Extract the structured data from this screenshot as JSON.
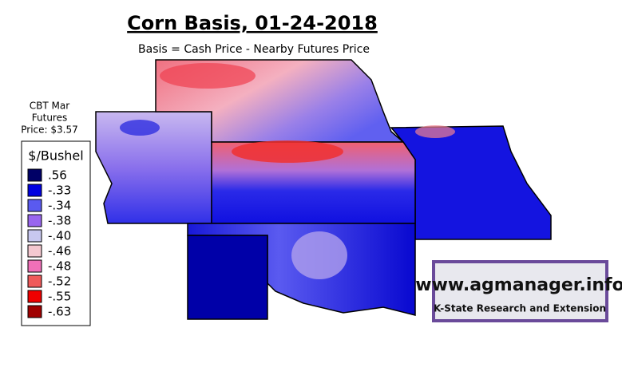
{
  "header": {
    "title": "Corn Basis, 01-24-2018",
    "subtitle": "Basis = Cash Price - Nearby Futures Price"
  },
  "futures": {
    "lines": [
      "CBT Mar",
      "Futures",
      "Price: $3.57"
    ]
  },
  "legend": {
    "title": "$/Bushel",
    "items": [
      {
        "label": ".56",
        "color": "#000066"
      },
      {
        "label": "-.33",
        "color": "#0000e0"
      },
      {
        "label": "-.34",
        "color": "#5a5af0"
      },
      {
        "label": "-.38",
        "color": "#9966ee"
      },
      {
        "label": "-.40",
        "color": "#c8c8f0"
      },
      {
        "label": "-.46",
        "color": "#f4c8d0"
      },
      {
        "label": "-.48",
        "color": "#f070b8"
      },
      {
        "label": "-.52",
        "color": "#f05a5a"
      },
      {
        "label": "-.55",
        "color": "#f00000"
      },
      {
        "label": "-.63",
        "color": "#a00000"
      }
    ]
  },
  "watermark": {
    "url": "www.agmanager.info",
    "org": "K-State Research and Extension"
  }
}
